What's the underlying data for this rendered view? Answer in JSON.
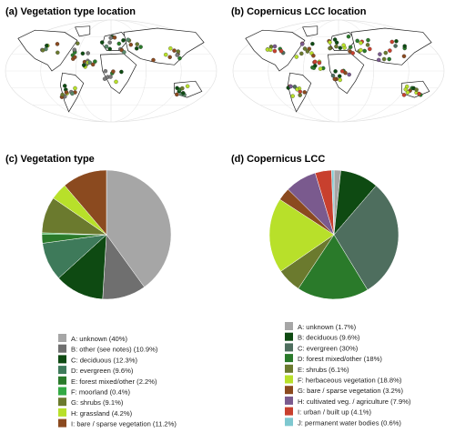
{
  "panels": {
    "a": {
      "title": "(a) Vegetation type location"
    },
    "b": {
      "title": "(b) Copernicus LCC location"
    },
    "c": {
      "title": "(c) Vegetation type"
    },
    "d": {
      "title": "(d) Copernicus LCC"
    }
  },
  "chart_data": [
    {
      "type": "pie",
      "title": "(c) Vegetation type",
      "labels": [
        "A: unknown (40%)",
        "B: other (see notes) (10.9%)",
        "C: deciduous (12.3%)",
        "D: evergreen (9.6%)",
        "E: forest mixed/other (2.2%)",
        "F: moorland (0.4%)",
        "G: shrubs (9.1%)",
        "H: grassland (4.2%)",
        "I: bare / sparse vegetation (11.2%)"
      ],
      "values": [
        40,
        10.9,
        12.3,
        9.6,
        2.2,
        0.4,
        9.1,
        4.2,
        11.2
      ],
      "colors": [
        "#a6a6a6",
        "#6f6f6f",
        "#0e4a12",
        "#3e7a5a",
        "#2a7a2a",
        "#33aa44",
        "#6b7a2e",
        "#b8e02a",
        "#8b4a1f"
      ],
      "legend": "below"
    },
    {
      "type": "pie",
      "title": "(d) Copernicus LCC",
      "labels": [
        "A: unknown (1.7%)",
        "B: deciduous (9.6%)",
        "C: evergreen (30%)",
        "D: forest mixed/other (18%)",
        "E: shrubs (6.1%)",
        "F: herbaceous vegetation (18.8%)",
        "G: bare / sparse vegetation (3.2%)",
        "H: cultivated veg. / agriculture (7.9%)",
        "I: urban / built up (4.1%)",
        "J: permanent water bodies (0.6%)"
      ],
      "values": [
        1.7,
        9.6,
        30,
        18,
        6.1,
        18.8,
        3.2,
        7.9,
        4.1,
        0.6
      ],
      "colors": [
        "#a6a6a6",
        "#0e4a12",
        "#4e6e5e",
        "#2a7a2a",
        "#6b7a2e",
        "#b8e02a",
        "#8b4a1f",
        "#7a5a8e",
        "#c8402e",
        "#7ec8d0"
      ],
      "legend": "below"
    }
  ],
  "maps": {
    "a": {
      "point_colors": [
        "#7a7a7a",
        "#0e4a12",
        "#2a7a2a",
        "#8b4a1f",
        "#5a8a6a",
        "#b8e02a",
        "#6b7a2e"
      ]
    },
    "b": {
      "point_colors": [
        "#b8e02a",
        "#2a7a2a",
        "#8b4a1f",
        "#4e6e5e",
        "#0e4a12",
        "#c8402e",
        "#7a5a8e",
        "#6b7a2e"
      ]
    }
  }
}
